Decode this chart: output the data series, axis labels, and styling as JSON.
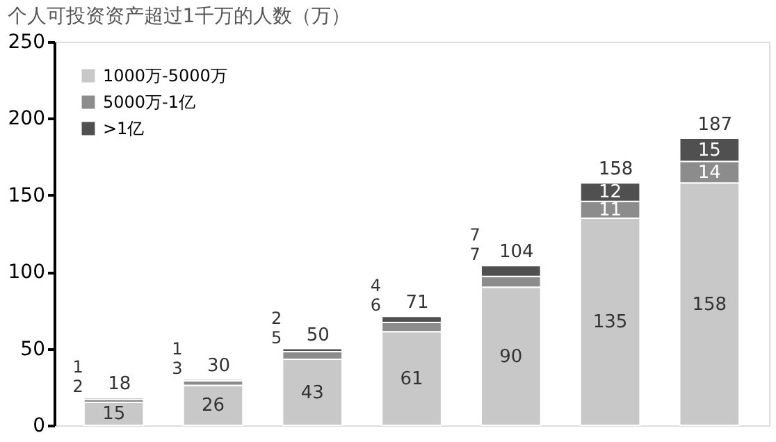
{
  "chart_data": {
    "type": "bar",
    "title": "个人可投资资产超过1千万的人数（万）",
    "stacked": true,
    "categories": [
      null,
      null,
      null,
      null,
      null,
      null,
      null
    ],
    "series": [
      {
        "name": "1000万-5000万",
        "color": "#c8c8c8",
        "values": [
          15,
          26,
          43,
          61,
          90,
          135,
          158
        ]
      },
      {
        "name": "5000万-1亿",
        "color": "#8c8c8c",
        "values": [
          2,
          3,
          5,
          6,
          7,
          11,
          14
        ]
      },
      {
        "name": ">1亿",
        "color": "#505050",
        "values": [
          1,
          1,
          2,
          4,
          7,
          12,
          15
        ]
      }
    ],
    "totals": [
      "18",
      "30",
      "50",
      "71",
      "104",
      "158",
      "187"
    ],
    "data_labels": true,
    "ylim": [
      0,
      250
    ],
    "yticks": [
      0,
      50,
      100,
      150,
      200,
      250
    ],
    "grid": false,
    "legend": "top left",
    "tick_labels": "y"
  }
}
